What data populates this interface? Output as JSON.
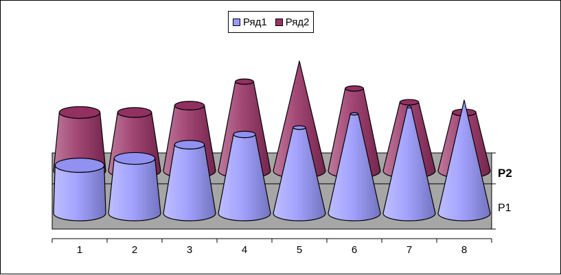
{
  "chart_data": {
    "type": "3d-column-cone",
    "categories": [
      "1",
      "2",
      "3",
      "4",
      "5",
      "6",
      "7",
      "8"
    ],
    "series": [
      {
        "name": "Ряд1",
        "axis_label": "P1",
        "color": "#9999ff",
        "values": [
          0.7,
          0.8,
          1.0,
          1.15,
          1.25,
          1.45,
          1.55,
          1.65
        ],
        "top_fraction": [
          0.94,
          0.78,
          0.57,
          0.42,
          0.24,
          0.15,
          0.07,
          0.0
        ]
      },
      {
        "name": "Ряд2",
        "axis_label": "P2",
        "color": "#993366",
        "values": [
          0.85,
          0.85,
          0.95,
          1.3,
          1.6,
          1.2,
          1.0,
          0.85
        ],
        "top_fraction": [
          0.78,
          0.65,
          0.57,
          0.35,
          0.0,
          0.35,
          0.36,
          0.45
        ]
      }
    ],
    "legend": {
      "position": "top"
    },
    "gridlines": false,
    "title": "",
    "xlabel": "",
    "ylabel": ""
  }
}
